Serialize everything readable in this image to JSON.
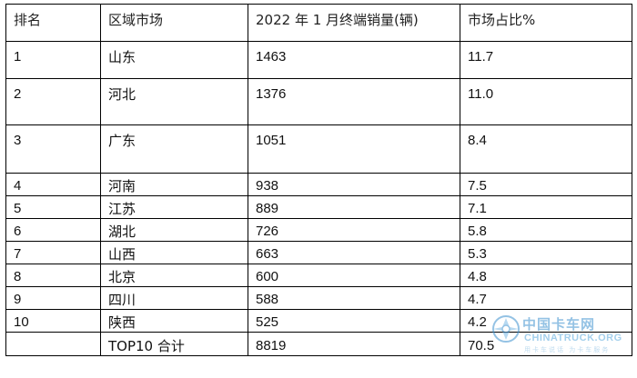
{
  "table": {
    "headers": [
      "排名",
      "区域市场",
      "2022 年 1 月终端销量(辆)",
      "市场占比%"
    ],
    "rows": [
      [
        "1",
        "山东",
        "1463",
        "11.7"
      ],
      [
        "2",
        "河北",
        "1376",
        "11.0"
      ],
      [
        "3",
        "广东",
        "1051",
        "8.4"
      ],
      [
        "4",
        "河南",
        "938",
        "7.5"
      ],
      [
        "5",
        "江苏",
        "889",
        "7.1"
      ],
      [
        "6",
        "湖北",
        "726",
        "5.8"
      ],
      [
        "7",
        "山西",
        "663",
        "5.3"
      ],
      [
        "8",
        "北京",
        "600",
        "4.8"
      ],
      [
        "9",
        "四川",
        "588",
        "4.7"
      ],
      [
        "10",
        "陕西",
        "525",
        "4.2"
      ]
    ],
    "total": [
      "",
      "TOP10 合计",
      "8819",
      "70.5"
    ]
  },
  "watermark": {
    "title": "中国卡车网",
    "subtitle": "CHINATRUCK.ORG",
    "tagline": "用卡车说话 为卡车服务",
    "accent_color": "#3d92cf",
    "icon": "chinatruck-logo-icon"
  }
}
